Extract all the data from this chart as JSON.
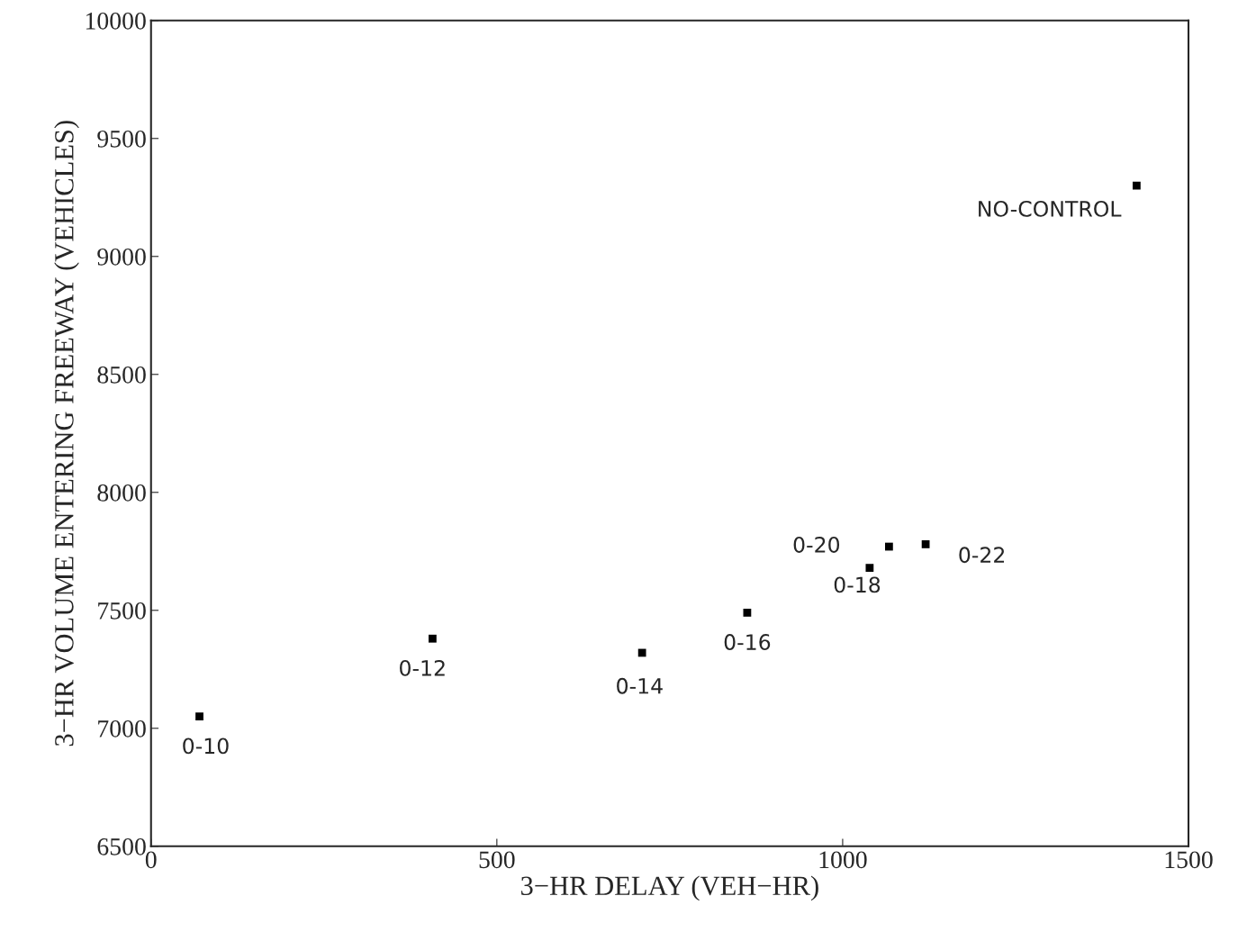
{
  "chart_data": {
    "type": "scatter",
    "xlabel": "3−HR DELAY (VEH−HR)",
    "ylabel": "3−HR VOLUME ENTERING FREEWAY (VEHICLES)",
    "x": [
      70,
      407,
      710,
      862,
      1039,
      1067,
      1120,
      1425
    ],
    "series": [
      {
        "color": "#000000",
        "values": [
          7050,
          7380,
          7320,
          7490,
          7680,
          7770,
          7780,
          9300
        ]
      }
    ],
    "marker": "square",
    "xlim": [
      0,
      1500
    ],
    "xticks": [
      0,
      500,
      1000,
      1500
    ],
    "ylim": [
      6500,
      10000
    ],
    "yticks": [
      6500,
      7000,
      7500,
      8000,
      8500,
      9000,
      9500,
      10000
    ],
    "grid": false,
    "annotations": [
      {
        "text": "0-10",
        "x": 70,
        "y": 7050
      },
      {
        "text": "0-12",
        "x": 407,
        "y": 7380
      },
      {
        "text": "0-14",
        "x": 710,
        "y": 7320
      },
      {
        "text": "0-16",
        "x": 862,
        "y": 7490
      },
      {
        "text": "0-18",
        "x": 1039,
        "y": 7680
      },
      {
        "text": "0-20",
        "x": 1067,
        "y": 7770
      },
      {
        "text": "0-22",
        "x": 1120,
        "y": 7780
      },
      {
        "text": "NO-CONTROL",
        "x": 1425,
        "y": 9300
      }
    ]
  }
}
